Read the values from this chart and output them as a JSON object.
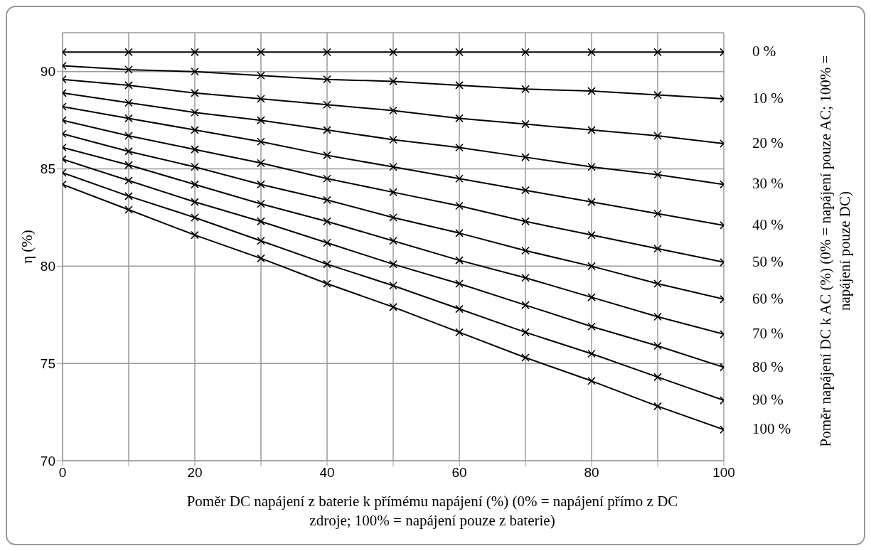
{
  "chart_data": {
    "type": "line",
    "xlabel": "Poměr DC napájení z baterie k přímému napájení (%) (0% = napájení přímo z DC zdroje; 100% = napájení pouze z baterie)",
    "ylabel": "η (%)",
    "legend_title": "Poměr napájení DC k AC (%) (0% = napájení pouze AC; 100% = napájení pouze DC)",
    "x": [
      0,
      10,
      20,
      30,
      40,
      50,
      60,
      70,
      80,
      90,
      100
    ],
    "xlim": [
      0,
      100
    ],
    "xticks": [
      0,
      {
        "value": 10,
        "label": null
      },
      20,
      {
        "value": 30,
        "label": null
      },
      40,
      {
        "value": 50,
        "label": null
      },
      60,
      {
        "value": 70,
        "label": null
      },
      80,
      {
        "value": 90,
        "label": null
      },
      100
    ],
    "ylim": [
      70,
      92
    ],
    "yticks": [
      70,
      75,
      80,
      85,
      90
    ],
    "grid": true,
    "marker": "cross",
    "line_style": "solid",
    "series": [
      {
        "name": "0 %",
        "color": "#000000",
        "values": [
          91.0,
          91.0,
          91.0,
          91.0,
          91.0,
          91.0,
          91.0,
          91.0,
          91.0,
          91.0,
          91.0
        ]
      },
      {
        "name": "10 %",
        "color": "#000000",
        "values": [
          90.3,
          90.1,
          90.0,
          89.8,
          89.6,
          89.5,
          89.3,
          89.1,
          89.0,
          88.8,
          88.6
        ]
      },
      {
        "name": "20 %",
        "color": "#000000",
        "values": [
          89.6,
          89.3,
          88.9,
          88.6,
          88.3,
          88.0,
          87.6,
          87.3,
          87.0,
          86.7,
          86.3
        ]
      },
      {
        "name": "30 %",
        "color": "#000000",
        "values": [
          88.9,
          88.4,
          87.9,
          87.5,
          87.0,
          86.5,
          86.1,
          85.6,
          85.1,
          84.7,
          84.2
        ]
      },
      {
        "name": "40 %",
        "color": "#000000",
        "values": [
          88.2,
          87.6,
          87.0,
          86.4,
          85.7,
          85.1,
          84.5,
          83.9,
          83.3,
          82.7,
          82.1
        ]
      },
      {
        "name": "50 %",
        "color": "#000000",
        "values": [
          87.5,
          86.7,
          86.0,
          85.3,
          84.5,
          83.8,
          83.1,
          82.3,
          81.6,
          80.9,
          80.2
        ]
      },
      {
        "name": "60 %",
        "color": "#000000",
        "values": [
          86.8,
          85.9,
          85.1,
          84.2,
          83.4,
          82.5,
          81.7,
          80.8,
          80.0,
          79.1,
          78.3
        ]
      },
      {
        "name": "70 %",
        "color": "#000000",
        "values": [
          86.1,
          85.2,
          84.2,
          83.2,
          82.3,
          81.3,
          80.3,
          79.4,
          78.4,
          77.4,
          76.5
        ]
      },
      {
        "name": "80 %",
        "color": "#000000",
        "values": [
          85.5,
          84.4,
          83.3,
          82.3,
          81.2,
          80.1,
          79.1,
          78.0,
          76.9,
          75.9,
          74.8
        ]
      },
      {
        "name": "90 %",
        "color": "#000000",
        "values": [
          84.8,
          83.6,
          82.5,
          81.3,
          80.1,
          79.0,
          77.8,
          76.6,
          75.5,
          74.3,
          73.1
        ]
      },
      {
        "name": "100 %",
        "color": "#000000",
        "values": [
          84.2,
          82.9,
          81.6,
          80.4,
          79.1,
          77.9,
          76.6,
          75.3,
          74.1,
          72.8,
          71.6
        ]
      }
    ]
  }
}
